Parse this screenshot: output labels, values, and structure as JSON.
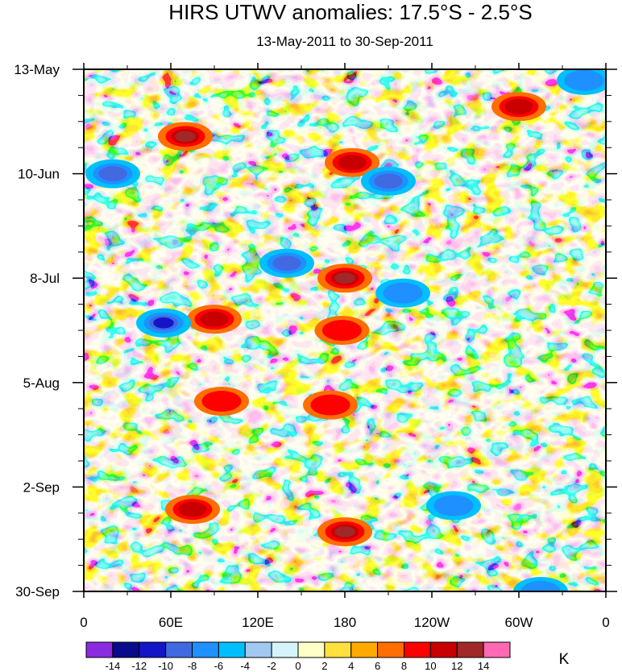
{
  "chart_data": {
    "type": "heatmap",
    "title": "HIRS UTWV anomalies: 17.5°S - 2.5°S",
    "subtitle": "13-May-2011 to 30-Sep-2011",
    "xlabel": "",
    "ylabel": "",
    "x_ticks": [
      "0",
      "60E",
      "120E",
      "180",
      "120W",
      "60W",
      "0"
    ],
    "x_range": [
      0,
      360
    ],
    "y_ticks": [
      "13-May",
      "10-Jun",
      "8-Jul",
      "5-Aug",
      "2-Sep",
      "30-Sep"
    ],
    "y_day_offsets": [
      0,
      28,
      56,
      84,
      112,
      140
    ],
    "colorbar": {
      "unit": "K",
      "levels": [
        -14,
        -12,
        -10,
        -8,
        -6,
        -4,
        -2,
        0,
        2,
        4,
        6,
        8,
        10,
        12,
        14
      ],
      "labels": [
        "-14",
        "-12",
        "-10",
        "-8",
        "-6",
        "-4",
        "-2",
        "0",
        "2",
        "4",
        "6",
        "8",
        "10",
        "12",
        "14"
      ],
      "colors": [
        "#8a2be2",
        "#0a0a8c",
        "#1515c8",
        "#4169e1",
        "#1e90ff",
        "#00bfff",
        "#a0c8f0",
        "#d4f4fa",
        "#ffffc8",
        "#ffe03c",
        "#ffaa00",
        "#ff6e00",
        "#ff0000",
        "#c80000",
        "#a02828",
        "#ff69b4"
      ]
    },
    "features": [
      {
        "lon": 180,
        "day": 56,
        "value": 13
      },
      {
        "lon": 178,
        "day": 70,
        "value": 9
      },
      {
        "lon": 170,
        "day": 90,
        "value": 8
      },
      {
        "lon": 180,
        "day": 124,
        "value": 12
      },
      {
        "lon": 185,
        "day": 25,
        "value": 10
      },
      {
        "lon": 70,
        "day": 18,
        "value": 12
      },
      {
        "lon": 90,
        "day": 67,
        "value": 10
      },
      {
        "lon": 95,
        "day": 89,
        "value": 9
      },
      {
        "lon": 75,
        "day": 118,
        "value": 10
      },
      {
        "lon": 300,
        "day": 10,
        "value": 10
      },
      {
        "lon": 20,
        "day": 28,
        "value": -10
      },
      {
        "lon": 140,
        "day": 52,
        "value": -11
      },
      {
        "lon": 55,
        "day": 68,
        "value": -13
      },
      {
        "lon": 210,
        "day": 30,
        "value": -11
      },
      {
        "lon": 220,
        "day": 60,
        "value": -8
      },
      {
        "lon": 255,
        "day": 117,
        "value": -9
      },
      {
        "lon": 315,
        "day": 140,
        "value": -8
      },
      {
        "lon": 345,
        "day": 3,
        "value": -9
      }
    ]
  }
}
